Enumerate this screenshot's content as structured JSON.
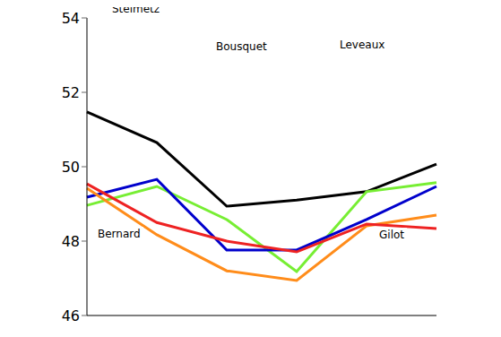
{
  "chart_data": {
    "type": "line",
    "categories": [
      null,
      null,
      null,
      null,
      null,
      null
    ],
    "ylim": [
      46,
      54
    ],
    "yticks": [
      46,
      48,
      50,
      52,
      54
    ],
    "grid": false,
    "tick_labels": "y",
    "series": [
      {
        "name": "Steimetz",
        "color": "#000000",
        "values": [
          51.47,
          50.65,
          48.94,
          49.1,
          49.33,
          50.07
        ]
      },
      {
        "name": "Bousquet",
        "color": "#77ee33",
        "values": [
          48.96,
          49.47,
          48.58,
          47.18,
          49.33,
          49.57
        ]
      },
      {
        "name": "Leveaux",
        "color": "#0000cc",
        "values": [
          49.18,
          49.66,
          47.76,
          47.76,
          48.58,
          49.47
        ]
      },
      {
        "name": "Bernard",
        "color": "#ff8c1a",
        "values": [
          49.42,
          48.17,
          47.2,
          46.94,
          48.41,
          48.7
        ]
      },
      {
        "name": "Gilot",
        "color": "#ee2222",
        "values": [
          49.54,
          48.5,
          48.0,
          47.71,
          48.46,
          48.34
        ]
      }
    ]
  }
}
